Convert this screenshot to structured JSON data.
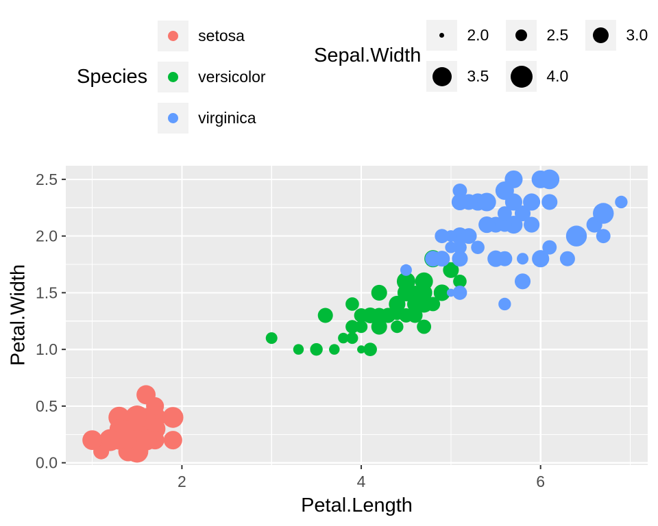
{
  "figure": {
    "background": "#FFFFFF",
    "panel_background": "#EBEBEB",
    "grid_color": "#FFFFFF",
    "tick_mark_color": "#333333",
    "tick_label_color": "#4D4D4D",
    "legend_key_background": "#F2F2F2",
    "size_legend_dot_color": "#000000"
  },
  "legends": {
    "species": {
      "title": "Species"
    },
    "size": {
      "title": "Sepal.Width",
      "items": [
        {
          "label": "2.0",
          "value": 2.0
        },
        {
          "label": "2.5",
          "value": 2.5
        },
        {
          "label": "3.0",
          "value": 3.0
        },
        {
          "label": "3.5",
          "value": 3.5
        },
        {
          "label": "4.0",
          "value": 4.0
        }
      ]
    }
  },
  "chart_data": {
    "type": "scatter",
    "title": "",
    "xlabel": "Petal.Length",
    "ylabel": "Petal.Width",
    "grid": true,
    "legend_position": "top",
    "size_scale": {
      "variable": "Sepal.Width",
      "domain": [
        2.0,
        4.4
      ]
    },
    "x_axis": {
      "domain": [
        0.705,
        7.195
      ],
      "ticks": [
        {
          "v": 2,
          "label": "2"
        },
        {
          "v": 4,
          "label": "4"
        },
        {
          "v": 6,
          "label": "6"
        }
      ],
      "minor": [
        1,
        3,
        5,
        7
      ],
      "title": "Petal.Length"
    },
    "y_axis": {
      "domain": [
        -0.02,
        2.62
      ],
      "ticks": [
        {
          "v": 0.0,
          "label": "0.0"
        },
        {
          "v": 0.5,
          "label": "0.5"
        },
        {
          "v": 1.0,
          "label": "1.0"
        },
        {
          "v": 1.5,
          "label": "1.5"
        },
        {
          "v": 2.0,
          "label": "2.0"
        },
        {
          "v": 2.5,
          "label": "2.5"
        }
      ],
      "minor": [
        0.25,
        0.75,
        1.25,
        1.75,
        2.25
      ],
      "title": "Petal.Width"
    },
    "point_format": [
      "Petal.Length",
      "Petal.Width",
      "Sepal.Width"
    ],
    "series": [
      {
        "name": "setosa",
        "color": "#F8766D",
        "points": [
          [
            1.4,
            0.2,
            3.5
          ],
          [
            1.4,
            0.2,
            3.0
          ],
          [
            1.3,
            0.2,
            3.2
          ],
          [
            1.5,
            0.2,
            3.1
          ],
          [
            1.4,
            0.2,
            3.6
          ],
          [
            1.7,
            0.4,
            3.9
          ],
          [
            1.4,
            0.3,
            3.4
          ],
          [
            1.5,
            0.2,
            3.4
          ],
          [
            1.4,
            0.2,
            2.9
          ],
          [
            1.5,
            0.1,
            3.1
          ],
          [
            1.5,
            0.2,
            3.7
          ],
          [
            1.6,
            0.2,
            3.4
          ],
          [
            1.4,
            0.1,
            3.0
          ],
          [
            1.1,
            0.1,
            3.0
          ],
          [
            1.2,
            0.2,
            4.0
          ],
          [
            1.5,
            0.4,
            4.4
          ],
          [
            1.3,
            0.4,
            3.9
          ],
          [
            1.4,
            0.3,
            3.5
          ],
          [
            1.7,
            0.3,
            3.8
          ],
          [
            1.5,
            0.3,
            3.8
          ],
          [
            1.7,
            0.2,
            3.4
          ],
          [
            1.5,
            0.4,
            3.7
          ],
          [
            1.0,
            0.2,
            3.6
          ],
          [
            1.7,
            0.5,
            3.3
          ],
          [
            1.9,
            0.2,
            3.4
          ],
          [
            1.6,
            0.2,
            3.0
          ],
          [
            1.6,
            0.4,
            3.4
          ],
          [
            1.5,
            0.2,
            3.5
          ],
          [
            1.4,
            0.2,
            3.4
          ],
          [
            1.6,
            0.2,
            3.2
          ],
          [
            1.6,
            0.2,
            3.1
          ],
          [
            1.5,
            0.4,
            3.4
          ],
          [
            1.5,
            0.1,
            4.1
          ],
          [
            1.4,
            0.2,
            4.2
          ],
          [
            1.5,
            0.2,
            3.1
          ],
          [
            1.2,
            0.2,
            3.2
          ],
          [
            1.3,
            0.2,
            3.5
          ],
          [
            1.4,
            0.1,
            3.6
          ],
          [
            1.3,
            0.2,
            3.0
          ],
          [
            1.5,
            0.2,
            3.4
          ],
          [
            1.3,
            0.3,
            3.5
          ],
          [
            1.3,
            0.3,
            2.3
          ],
          [
            1.3,
            0.2,
            3.2
          ],
          [
            1.6,
            0.6,
            3.5
          ],
          [
            1.9,
            0.4,
            3.8
          ],
          [
            1.4,
            0.3,
            3.0
          ],
          [
            1.6,
            0.2,
            3.8
          ],
          [
            1.4,
            0.2,
            3.2
          ],
          [
            1.5,
            0.2,
            3.7
          ],
          [
            1.4,
            0.2,
            3.3
          ]
        ]
      },
      {
        "name": "versicolor",
        "color": "#00BA38",
        "points": [
          [
            4.7,
            1.4,
            3.2
          ],
          [
            4.5,
            1.5,
            3.2
          ],
          [
            4.9,
            1.5,
            3.1
          ],
          [
            4.0,
            1.3,
            2.3
          ],
          [
            4.6,
            1.5,
            2.8
          ],
          [
            4.5,
            1.3,
            2.8
          ],
          [
            4.7,
            1.6,
            3.3
          ],
          [
            3.3,
            1.0,
            2.4
          ],
          [
            4.6,
            1.3,
            2.9
          ],
          [
            3.9,
            1.4,
            2.7
          ],
          [
            3.5,
            1.0,
            2.0
          ],
          [
            4.2,
            1.5,
            3.0
          ],
          [
            4.0,
            1.0,
            2.2
          ],
          [
            4.7,
            1.4,
            2.9
          ],
          [
            3.6,
            1.3,
            2.9
          ],
          [
            4.4,
            1.4,
            3.1
          ],
          [
            4.5,
            1.5,
            3.0
          ],
          [
            4.1,
            1.0,
            2.7
          ],
          [
            4.5,
            1.5,
            2.2
          ],
          [
            3.9,
            1.1,
            2.5
          ],
          [
            4.8,
            1.8,
            3.2
          ],
          [
            4.0,
            1.3,
            2.8
          ],
          [
            4.9,
            1.5,
            2.5
          ],
          [
            4.7,
            1.2,
            2.8
          ],
          [
            4.3,
            1.3,
            2.9
          ],
          [
            4.4,
            1.4,
            3.0
          ],
          [
            4.8,
            1.4,
            2.8
          ],
          [
            5.0,
            1.7,
            3.0
          ],
          [
            4.5,
            1.5,
            2.9
          ],
          [
            3.5,
            1.0,
            2.6
          ],
          [
            3.8,
            1.1,
            2.4
          ],
          [
            3.7,
            1.0,
            2.4
          ],
          [
            3.9,
            1.2,
            2.7
          ],
          [
            5.1,
            1.6,
            2.7
          ],
          [
            4.5,
            1.5,
            3.0
          ],
          [
            4.5,
            1.6,
            3.4
          ],
          [
            4.7,
            1.5,
            3.1
          ],
          [
            4.4,
            1.3,
            2.3
          ],
          [
            4.1,
            1.3,
            3.0
          ],
          [
            4.0,
            1.3,
            2.5
          ],
          [
            4.4,
            1.2,
            2.6
          ],
          [
            4.6,
            1.4,
            3.0
          ],
          [
            4.0,
            1.2,
            2.6
          ],
          [
            3.3,
            1.0,
            2.3
          ],
          [
            4.2,
            1.3,
            2.7
          ],
          [
            4.2,
            1.2,
            3.0
          ],
          [
            4.2,
            1.3,
            2.9
          ],
          [
            4.3,
            1.3,
            2.9
          ],
          [
            3.0,
            1.1,
            2.5
          ],
          [
            4.1,
            1.3,
            2.8
          ]
        ]
      },
      {
        "name": "virginica",
        "color": "#619CFF",
        "points": [
          [
            6.0,
            2.5,
            3.3
          ],
          [
            5.1,
            1.9,
            2.7
          ],
          [
            5.9,
            2.1,
            3.0
          ],
          [
            5.6,
            1.8,
            2.9
          ],
          [
            5.8,
            2.2,
            3.0
          ],
          [
            6.6,
            2.1,
            3.0
          ],
          [
            4.5,
            1.7,
            2.5
          ],
          [
            6.3,
            1.8,
            2.9
          ],
          [
            5.8,
            1.8,
            2.5
          ],
          [
            6.1,
            2.5,
            3.6
          ],
          [
            5.1,
            2.0,
            3.2
          ],
          [
            5.3,
            1.9,
            2.7
          ],
          [
            5.5,
            2.1,
            3.0
          ],
          [
            5.0,
            2.0,
            2.5
          ],
          [
            5.1,
            2.4,
            2.8
          ],
          [
            5.3,
            2.3,
            3.2
          ],
          [
            5.5,
            1.8,
            3.0
          ],
          [
            6.7,
            2.2,
            3.8
          ],
          [
            6.9,
            2.3,
            2.6
          ],
          [
            5.0,
            1.5,
            2.2
          ],
          [
            5.7,
            2.3,
            3.2
          ],
          [
            4.9,
            2.0,
            2.8
          ],
          [
            6.7,
            2.0,
            2.8
          ],
          [
            4.9,
            1.8,
            2.7
          ],
          [
            5.7,
            2.1,
            3.3
          ],
          [
            6.0,
            1.8,
            3.2
          ],
          [
            4.8,
            1.8,
            2.8
          ],
          [
            4.9,
            1.8,
            3.0
          ],
          [
            5.6,
            2.1,
            2.8
          ],
          [
            5.8,
            1.6,
            3.0
          ],
          [
            6.1,
            1.9,
            2.8
          ],
          [
            6.4,
            2.0,
            3.8
          ],
          [
            5.6,
            2.2,
            2.8
          ],
          [
            5.1,
            1.5,
            2.8
          ],
          [
            5.6,
            1.4,
            2.6
          ],
          [
            6.1,
            2.3,
            3.0
          ],
          [
            5.6,
            2.4,
            3.4
          ],
          [
            5.5,
            1.8,
            3.1
          ],
          [
            4.8,
            1.8,
            3.0
          ],
          [
            5.4,
            2.1,
            3.1
          ],
          [
            5.6,
            2.4,
            3.1
          ],
          [
            5.1,
            2.3,
            3.1
          ],
          [
            5.1,
            1.9,
            2.7
          ],
          [
            5.9,
            2.3,
            3.2
          ],
          [
            5.7,
            2.5,
            3.3
          ],
          [
            5.2,
            2.3,
            3.0
          ],
          [
            5.0,
            1.9,
            2.5
          ],
          [
            5.2,
            2.0,
            3.0
          ],
          [
            5.4,
            2.3,
            3.4
          ],
          [
            5.1,
            1.8,
            3.0
          ]
        ]
      }
    ]
  }
}
